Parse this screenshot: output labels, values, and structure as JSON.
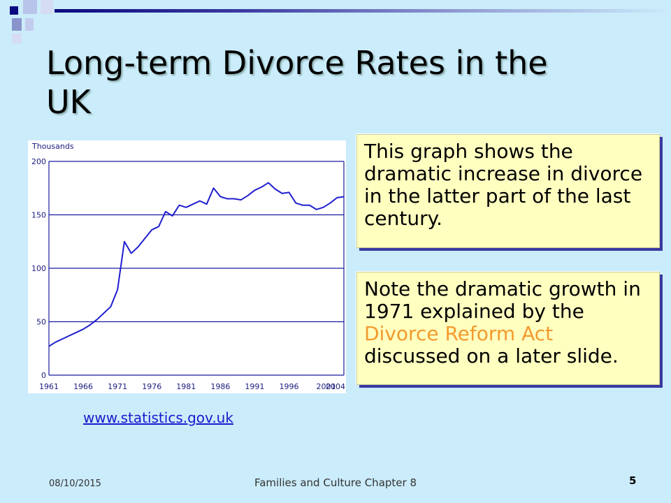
{
  "slide": {
    "title": "Long-term Divorce Rates in the UK",
    "callout_1": "This graph shows the dramatic increase in divorce in the latter part of the last century.",
    "callout_2": {
      "before": "Note the dramatic growth in 1971 explained by the ",
      "highlight": "Divorce Reform Act",
      "after": " discussed on a later slide."
    },
    "source_link": "www.statistics.gov.uk",
    "footer": {
      "date": "08/10/2015",
      "center": "Families and Culture Chapter 8",
      "page_number": "5"
    }
  },
  "colors": {
    "background": "#cbecfb",
    "callout_fill": "#ffffc0",
    "accent": "#f39a2e",
    "line": "#1f1fd0",
    "deco_navy": "#0a0a80"
  },
  "chart_data": {
    "type": "line",
    "ylabel": "Thousands",
    "xlabel": "",
    "ylim": [
      0,
      200
    ],
    "yticks": [
      0,
      50,
      100,
      150,
      200
    ],
    "xlim": [
      1961,
      2004
    ],
    "xtick_labels": [
      "1961",
      "1966",
      "1971",
      "1976",
      "1981",
      "1986",
      "1991",
      "1996",
      "2001",
      "2004"
    ],
    "grid": "horizontal",
    "series": [
      {
        "values_x": [
          1961,
          1962,
          1963,
          1964,
          1965,
          1966,
          1967,
          1968,
          1969,
          1970,
          1971,
          1972,
          1973,
          1974,
          1975,
          1976,
          1977,
          1978,
          1979,
          1980,
          1981,
          1982,
          1983,
          1984,
          1985,
          1986,
          1987,
          1988,
          1989,
          1990,
          1991,
          1992,
          1993,
          1994,
          1995,
          1996,
          1997,
          1998,
          1999,
          2000,
          2001,
          2002,
          2003,
          2004
        ],
        "values_y": [
          27,
          31,
          34,
          37,
          40,
          43,
          47,
          52,
          58,
          64,
          80,
          125,
          114,
          120,
          128,
          136,
          139,
          153,
          149,
          159,
          157,
          160,
          163,
          160,
          175,
          167,
          165,
          165,
          164,
          168,
          173,
          176,
          180,
          174,
          170,
          171,
          161,
          159,
          159,
          155,
          157,
          161,
          166,
          167
        ]
      }
    ]
  }
}
